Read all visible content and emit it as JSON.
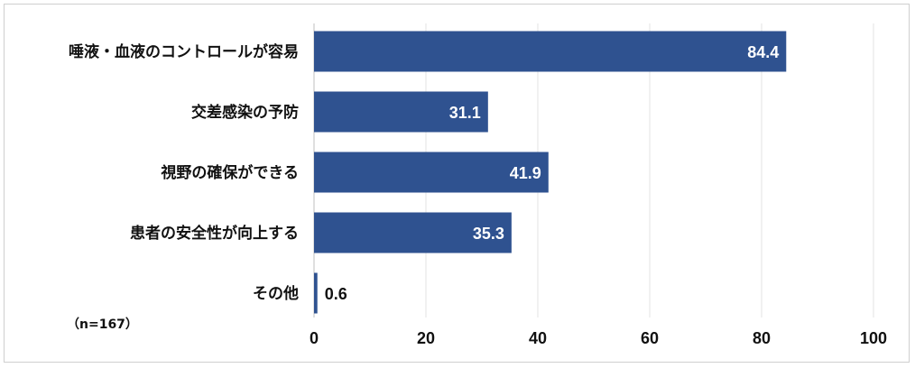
{
  "chart_data": {
    "type": "bar",
    "orientation": "horizontal",
    "categories": [
      "唾液・血液のコントロールが容易",
      "交差感染の予防",
      "視野の確保ができる",
      "患者の安全性が向上する",
      "その他"
    ],
    "values": [
      84.4,
      31.1,
      41.9,
      35.3,
      0.6
    ],
    "data_labels": [
      "84.4",
      "31.1",
      "41.9",
      "35.3",
      "0.6"
    ],
    "xlim": [
      0,
      100
    ],
    "xticks": [
      "0",
      "20",
      "40",
      "60",
      "80",
      "100"
    ],
    "grid": true,
    "bar_color": "#2f5290",
    "note": "（n=167）"
  }
}
